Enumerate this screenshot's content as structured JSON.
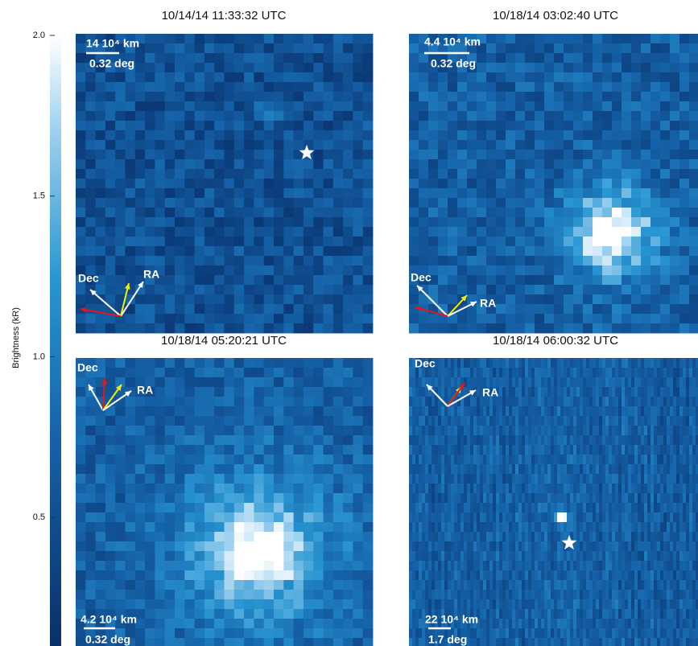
{
  "colorbar": {
    "label": "Brightness (kR)",
    "lim": [
      0.1,
      2.0
    ],
    "ticks": [
      {
        "value": 2,
        "label": "2.0"
      },
      1.5,
      {
        "value": 1,
        "label": "1.0"
      },
      0.5
    ]
  },
  "panels": [
    {
      "title": "10/14/14 11:33:32 UTC",
      "scale_distance": "14 10⁴ km",
      "scale_angle": "0.32 deg",
      "dec": "Dec",
      "ra": "RA"
    },
    {
      "title": "10/18/14 03:02:40 UTC",
      "scale_distance": "4.4 10⁴ km",
      "scale_angle": "0.32 deg",
      "dec": "Dec",
      "ra": "RA"
    },
    {
      "title": "10/18/14 05:20:21 UTC",
      "scale_distance": "4.2 10⁴ km",
      "scale_angle": "0.32 deg",
      "dec": "Dec",
      "ra": "RA"
    },
    {
      "title": "10/18/14 06:00:32 UTC",
      "scale_distance": "22 10⁴ km",
      "scale_angle": "1.7 deg",
      "dec": "Dec",
      "ra": "RA"
    }
  ]
}
